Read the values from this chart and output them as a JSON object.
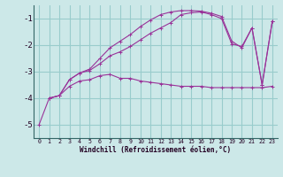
{
  "xlabel": "Windchill (Refroidissement éolien,°C)",
  "bg_color": "#cce8e8",
  "grid_color": "#99cccc",
  "line_color": "#993399",
  "xlim": [
    -0.5,
    23.5
  ],
  "ylim": [
    -5.5,
    -0.5
  ],
  "yticks": [
    -5,
    -4,
    -3,
    -2,
    -1
  ],
  "xticks": [
    0,
    1,
    2,
    3,
    4,
    5,
    6,
    7,
    8,
    9,
    10,
    11,
    12,
    13,
    14,
    15,
    16,
    17,
    18,
    19,
    20,
    21,
    22,
    23
  ],
  "series": [
    {
      "x": [
        0,
        1,
        2,
        3,
        4,
        5,
        6,
        7,
        8,
        9,
        10,
        11,
        12,
        13,
        14,
        15,
        16,
        17,
        18,
        19,
        20,
        21,
        22,
        23
      ],
      "y": [
        -5.0,
        -4.0,
        -3.9,
        -3.55,
        -3.35,
        -3.3,
        -3.15,
        -3.1,
        -3.25,
        -3.25,
        -3.35,
        -3.4,
        -3.45,
        -3.5,
        -3.55,
        -3.55,
        -3.55,
        -3.6,
        -3.6,
        -3.6,
        -3.6,
        -3.6,
        -3.6,
        -3.55
      ],
      "marker": "+"
    },
    {
      "x": [
        1,
        2,
        3,
        4,
        5,
        6,
        7,
        8,
        9,
        10,
        11,
        12,
        13,
        14,
        15,
        16,
        17,
        18,
        19,
        20,
        21,
        22,
        23
      ],
      "y": [
        -4.0,
        -3.9,
        -3.3,
        -3.05,
        -2.95,
        -2.7,
        -2.4,
        -2.25,
        -2.05,
        -1.8,
        -1.55,
        -1.35,
        -1.15,
        -0.85,
        -0.78,
        -0.75,
        -0.85,
        -1.0,
        -1.95,
        -2.05,
        -1.35,
        -3.5,
        -1.1
      ],
      "marker": "+"
    },
    {
      "x": [
        1,
        2,
        3,
        4,
        5,
        6,
        7,
        8,
        9,
        10,
        11,
        12,
        13,
        14,
        15,
        16,
        17,
        18,
        19,
        20,
        21,
        22,
        23
      ],
      "y": [
        -4.0,
        -3.9,
        -3.3,
        -3.05,
        -2.9,
        -2.5,
        -2.1,
        -1.85,
        -1.6,
        -1.3,
        -1.05,
        -0.85,
        -0.75,
        -0.7,
        -0.7,
        -0.72,
        -0.8,
        -0.92,
        -1.85,
        -2.1,
        -1.35,
        -3.5,
        -1.1
      ],
      "marker": "+"
    }
  ]
}
